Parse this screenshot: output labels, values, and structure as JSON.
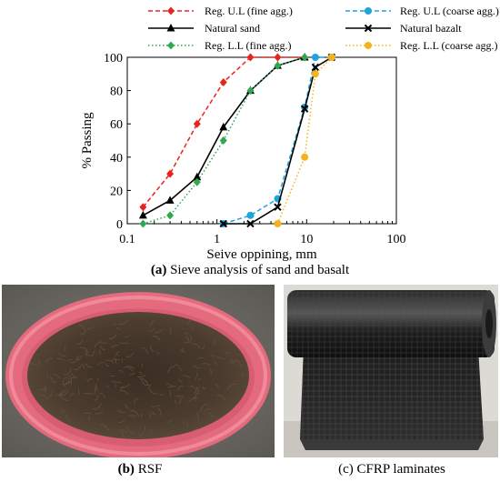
{
  "chart_data": {
    "type": "line",
    "xscale": "log",
    "xlim": [
      0.1,
      100
    ],
    "ylim": [
      0,
      100
    ],
    "x_ticks": [
      "0.1",
      "1",
      "10",
      "100"
    ],
    "y_ticks": [
      "0",
      "20",
      "40",
      "60",
      "80",
      "100"
    ],
    "xlabel": "Seive oppining, mm",
    "ylabel": "% Passing",
    "grid": false,
    "legend_position": "top",
    "series": [
      {
        "name": "Reg. U.L (fine agg.)",
        "color": "#e8231c",
        "dash": "dashed",
        "marker": "diamond",
        "x": [
          0.15,
          0.3,
          0.6,
          1.18,
          2.36,
          4.75,
          9.5
        ],
        "y": [
          10,
          30,
          60,
          85,
          100,
          100,
          100
        ]
      },
      {
        "name": "Reg. U.L (coarse agg.)",
        "color": "#21a4dc",
        "dash": "dashed",
        "marker": "circle",
        "x": [
          1.18,
          2.36,
          4.75,
          9.5,
          12.5,
          19
        ],
        "y": [
          0,
          5,
          15,
          70,
          100,
          100
        ]
      },
      {
        "name": "Natural sand",
        "color": "#000000",
        "dash": "solid",
        "marker": "triangle",
        "x": [
          0.15,
          0.3,
          0.6,
          1.18,
          2.36,
          4.75,
          9.5
        ],
        "y": [
          5,
          14,
          28,
          58,
          80,
          95,
          100
        ]
      },
      {
        "name": "Natural bazalt",
        "color": "#000000",
        "dash": "solid",
        "marker": "x",
        "x": [
          1.18,
          2.36,
          4.75,
          9.5,
          12.5,
          19
        ],
        "y": [
          0,
          0,
          10,
          69,
          94,
          100
        ]
      },
      {
        "name": "Reg. L.L (fine agg.)",
        "color": "#2fa84f",
        "dash": "dotted",
        "marker": "diamond",
        "x": [
          0.15,
          0.3,
          0.6,
          1.18,
          2.36,
          4.75,
          9.5
        ],
        "y": [
          0,
          5,
          25,
          50,
          80,
          95,
          100
        ]
      },
      {
        "name": "Reg. L.L (coarse agg.)",
        "color": "#f5b21a",
        "dash": "dotted",
        "marker": "circle",
        "x": [
          4.75,
          9.5,
          12.5,
          19
        ],
        "y": [
          0,
          40,
          90,
          100
        ]
      }
    ]
  },
  "captions": {
    "a_label": "(a)",
    "a_text": " Sieve analysis of sand and basalt",
    "b_label": "(b)",
    "b_text": " RSF",
    "c_text": "(c) CFRP laminates"
  }
}
